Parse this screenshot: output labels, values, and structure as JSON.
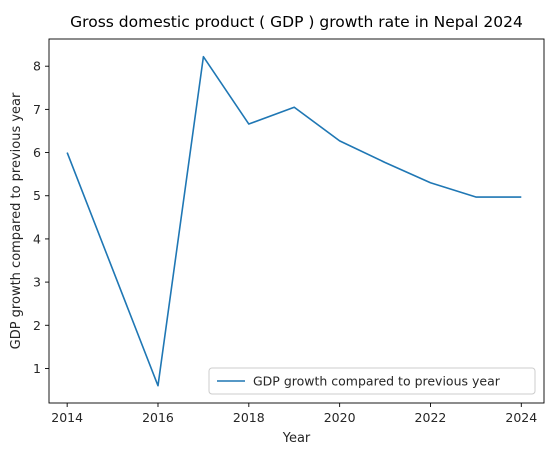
{
  "chart_data": {
    "type": "line",
    "title": "Gross domestic product ( GDP ) growth rate in Nepal 2024",
    "xlabel": "Year",
    "ylabel": "GDP growth compared to previous year",
    "xlim": [
      2013.6,
      2024.5
    ],
    "ylim": [
      0.2,
      8.63
    ],
    "xticks": [
      2014,
      2016,
      2018,
      2020,
      2022,
      2024
    ],
    "yticks": [
      1,
      2,
      3,
      4,
      5,
      6,
      7,
      8
    ],
    "grid": false,
    "legend_position": "lower-right",
    "x": [
      2014,
      2016,
      2017,
      2018,
      2019,
      2020,
      2021,
      2022,
      2023,
      2024
    ],
    "series": [
      {
        "name": "GDP growth compared to previous year",
        "color": "#1f77b4",
        "values": [
          6.0,
          0.6,
          8.22,
          6.66,
          7.05,
          6.27,
          5.77,
          5.3,
          4.97,
          4.97
        ]
      }
    ]
  }
}
